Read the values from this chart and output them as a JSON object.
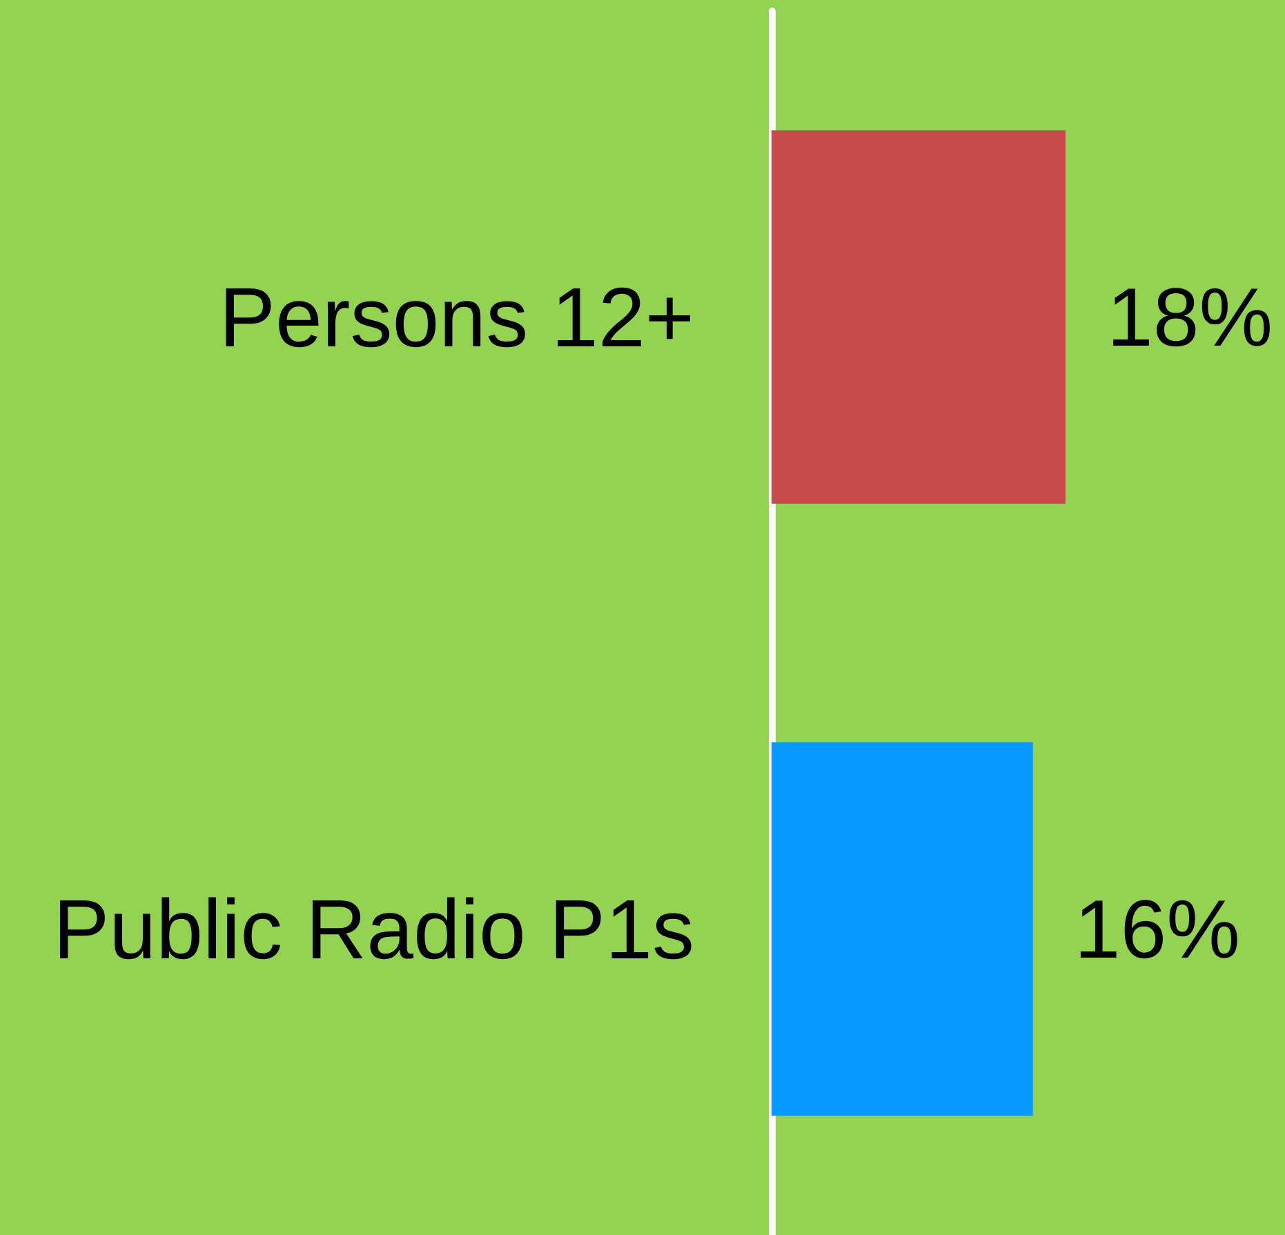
{
  "chart_data": {
    "type": "bar",
    "orientation": "horizontal",
    "categories": [
      "Persons 12+",
      "Public Radio P1s"
    ],
    "values": [
      18,
      16
    ],
    "colors": [
      "#c64a4a",
      "#0599ff"
    ],
    "value_labels": [
      "18%",
      "16%"
    ]
  }
}
